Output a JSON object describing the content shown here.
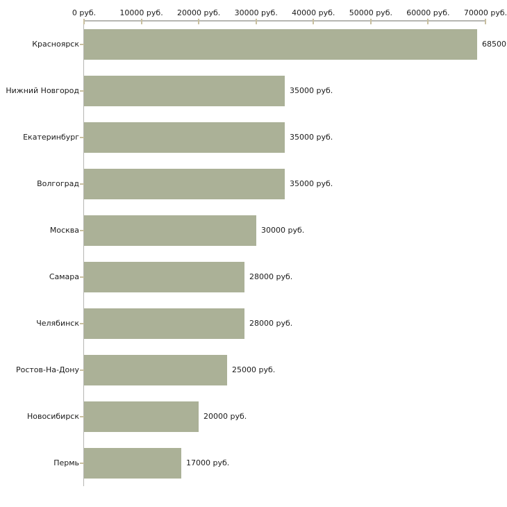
{
  "chart_data": {
    "type": "bar",
    "orientation": "horizontal",
    "title": "",
    "xlabel": "",
    "ylabel": "",
    "categories": [
      "Красноярск",
      "Нижний Новгород",
      "Екатеринбург",
      "Волгоград",
      "Москва",
      "Самара",
      "Челябинск",
      "Ростов-На-Дону",
      "Новосибирск",
      "Пермь"
    ],
    "values": [
      68500,
      35000,
      35000,
      35000,
      30000,
      28000,
      28000,
      25000,
      20000,
      17000
    ],
    "value_labels": [
      "68500",
      "35000 руб.",
      "35000 руб.",
      "35000 руб.",
      "30000 руб.",
      "28000 руб.",
      "28000 руб.",
      "25000 руб.",
      "20000 руб.",
      "17000 руб."
    ],
    "x_ticks": [
      "0 руб.",
      "10000 руб.",
      "20000 руб.",
      "30000 руб.",
      "40000 руб.",
      "50000 руб.",
      "60000 руб.",
      "70000 руб."
    ],
    "x_tick_values": [
      0,
      10000,
      20000,
      30000,
      40000,
      50000,
      60000,
      70000
    ],
    "xlim": [
      0,
      70000
    ],
    "grid": false,
    "legend": false,
    "colors": {
      "bar": "#abb197",
      "axis": "#b6b6b2",
      "tick": "#c8bf9f",
      "text": "#1a1a1a",
      "background": "#ffffff"
    }
  }
}
